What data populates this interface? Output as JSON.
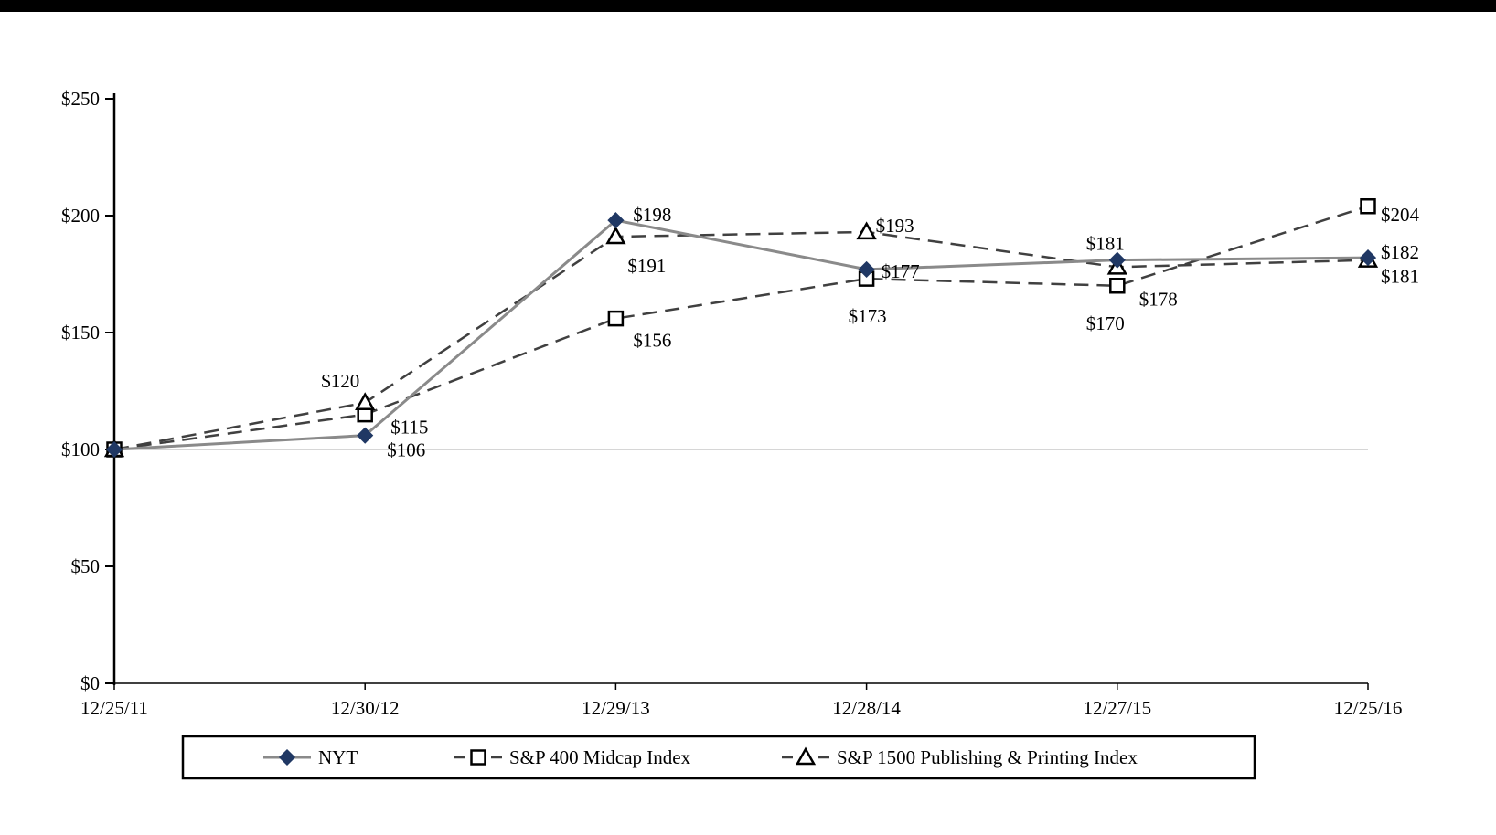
{
  "page": {
    "background": "#ffffff",
    "top_bar_color": "#000000"
  },
  "chart_data": {
    "type": "line",
    "title": "",
    "xlabel": "",
    "ylabel": "",
    "categories": [
      "12/25/11",
      "12/30/12",
      "12/29/13",
      "12/28/14",
      "12/27/15",
      "12/25/16"
    ],
    "ylim": [
      0,
      250
    ],
    "y_ticks": [
      {
        "value": 0,
        "label": "$0"
      },
      {
        "value": 50,
        "label": "$50"
      },
      {
        "value": 100,
        "label": "$100"
      },
      {
        "value": 150,
        "label": "$150"
      },
      {
        "value": 200,
        "label": "$200"
      },
      {
        "value": 250,
        "label": "$250"
      }
    ],
    "gridlines": [
      100
    ],
    "gridline_color": "#c8c8c8",
    "axis_color": "#000000",
    "legend_position": "bottom",
    "series": [
      {
        "name": "NYT",
        "marker": "diamond",
        "line_style": "solid",
        "line_color": "#8a8a8a",
        "marker_fill": "#203864",
        "marker_stroke": "#203864",
        "values": [
          100,
          106,
          198,
          177,
          181,
          182
        ],
        "labels": [
          "",
          "$106",
          "$198",
          "$177",
          "$181",
          "$182"
        ]
      },
      {
        "name": "S&P 400 Midcap Index",
        "marker": "square",
        "line_style": "dashed",
        "line_color": "#404040",
        "marker_fill": "#ffffff",
        "marker_stroke": "#000000",
        "values": [
          100,
          115,
          156,
          173,
          170,
          204
        ],
        "labels": [
          "",
          "$115",
          "$156",
          "$173",
          "$170",
          "$204"
        ]
      },
      {
        "name": "S&P 1500 Publishing & Printing Index",
        "marker": "triangle",
        "line_style": "dashed",
        "line_color": "#404040",
        "marker_fill": "#ffffff",
        "marker_stroke": "#000000",
        "values": [
          100,
          120,
          191,
          193,
          178,
          181
        ],
        "labels": [
          "",
          "$120",
          "$191",
          "$193",
          "$178",
          "$181"
        ]
      }
    ],
    "label_offsets": [
      [
        [
          0,
          0
        ],
        [
          24,
          16
        ],
        [
          19,
          -6
        ],
        [
          16,
          2
        ],
        [
          -34,
          -18
        ],
        [
          14,
          -6
        ]
      ],
      [
        [
          0,
          0
        ],
        [
          28,
          14
        ],
        [
          19,
          24
        ],
        [
          -20,
          41
        ],
        [
          -34,
          41
        ],
        [
          14,
          9
        ]
      ],
      [
        [
          0,
          0
        ],
        [
          -48,
          -24
        ],
        [
          13,
          32
        ],
        [
          10,
          -7
        ],
        [
          24,
          35
        ],
        [
          14,
          18
        ]
      ]
    ]
  }
}
